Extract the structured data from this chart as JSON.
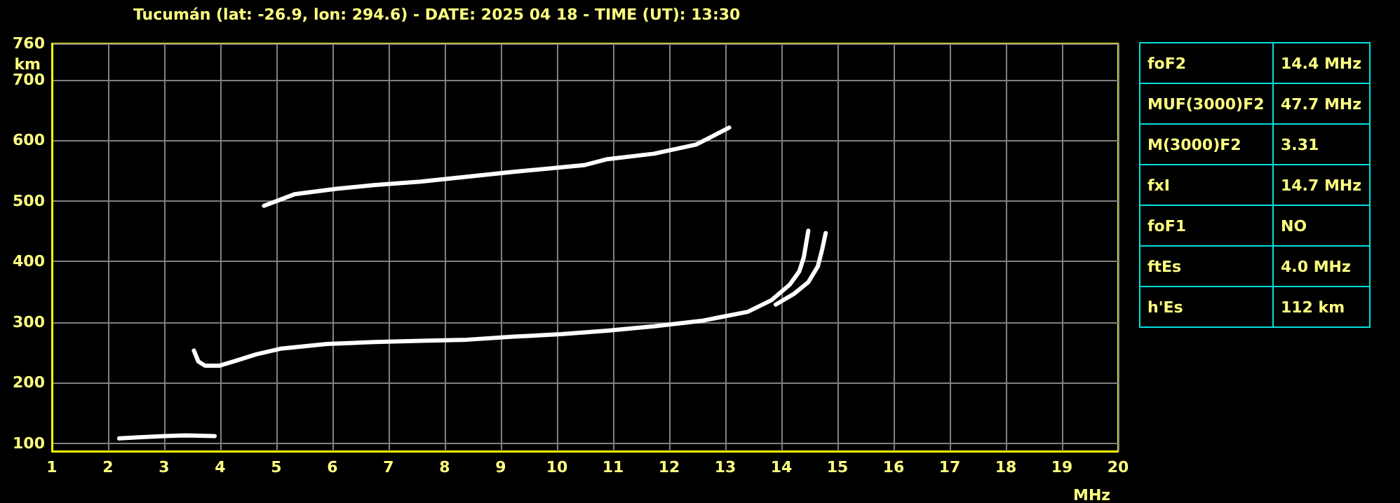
{
  "chart_data": [
    {
      "type": "line",
      "title": "Tucumán (lat: -26.9, lon: 294.6) - DATE: 2025 04 18 - TIME (UT): 13:30",
      "xlabel": "MHz",
      "ylabel": "km",
      "xlim": [
        1,
        20
      ],
      "xticks": [
        1,
        2,
        3,
        4,
        5,
        6,
        7,
        8,
        9,
        10,
        11,
        12,
        13,
        14,
        15,
        16,
        17,
        18,
        19,
        20
      ],
      "ylim": [
        87,
        760
      ],
      "yticks": [
        100,
        200,
        300,
        400,
        500,
        600,
        700,
        760
      ],
      "grid": true,
      "marker": "none",
      "line_style": "solid",
      "series": [
        {
          "color": "#ffffff",
          "x": [
            2.2,
            2.6,
            3.0,
            3.4,
            3.9
          ],
          "values": [
            108,
            110,
            112,
            113,
            112
          ]
        },
        {
          "color": "#ffffff",
          "x": [
            3.53,
            3.61,
            3.73,
            3.98,
            4.23,
            4.65,
            5.07,
            5.9,
            6.73,
            7.57,
            8.4,
            9.23,
            10.07,
            10.9,
            11.73,
            12.57,
            13.4,
            13.82,
            14.15,
            14.32,
            14.4,
            14.48
          ],
          "values": [
            253,
            235,
            228,
            228,
            235,
            247,
            256,
            264,
            267,
            269,
            271,
            276,
            280,
            286,
            293,
            302,
            317,
            336,
            362,
            384,
            407,
            451
          ]
        },
        {
          "color": "#ffffff",
          "x": [
            13.9,
            14.23,
            14.48,
            14.65,
            14.73,
            14.79
          ],
          "values": [
            329,
            347,
            366,
            392,
            421,
            447
          ]
        },
        {
          "color": "#ffffff",
          "x": [
            4.78,
            5.32,
            6.07,
            6.73,
            7.57,
            8.4,
            9.23,
            10.48,
            10.9,
            11.73,
            12.48,
            13.07
          ],
          "values": [
            492,
            511,
            520,
            526,
            532,
            540,
            548,
            559,
            569,
            578,
            593,
            621
          ]
        }
      ]
    },
    {
      "type": "other",
      "annotations": [
        "foF2",
        "14.4 MHz",
        "MUF(3000)F2",
        "47.7 MHz",
        "M(3000)F2",
        "3.31",
        "fxI",
        "14.7 MHz",
        "foF1",
        "NO",
        "ftEs",
        "4.0 MHz",
        "h'Es",
        "112 km"
      ]
    }
  ]
}
